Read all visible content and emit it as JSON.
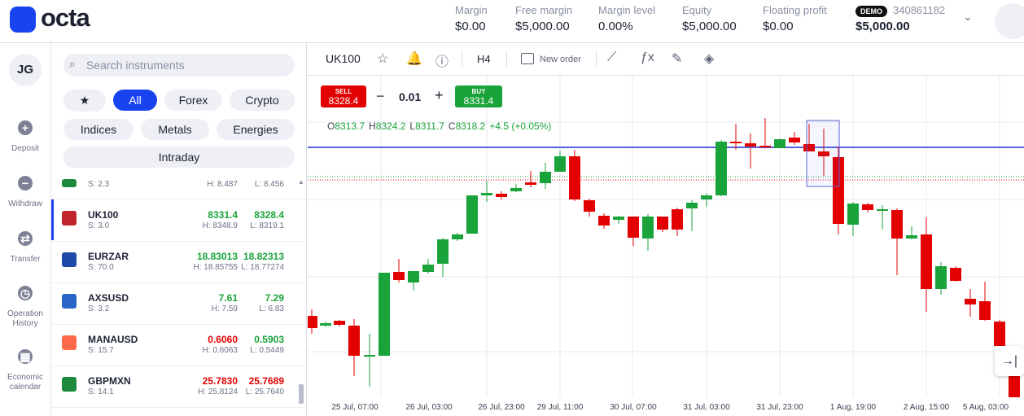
{
  "header": {
    "logo": "octa",
    "stats": [
      {
        "label": "Margin",
        "value": "$0.00"
      },
      {
        "label": "Free margin",
        "value": "$5,000.00"
      },
      {
        "label": "Margin level",
        "value": "0.00%"
      },
      {
        "label": "Equity",
        "value": "$5,000.00"
      },
      {
        "label": "Floating profit",
        "value": "$0.00"
      }
    ],
    "account": {
      "badge": "DEMO",
      "id": "340861182",
      "balance": "$5,000.00"
    }
  },
  "sidebar": {
    "avatar": "JG",
    "items": [
      "Deposit",
      "Withdraw",
      "Transfer",
      "Operation History",
      "Economic calendar"
    ]
  },
  "instruments": {
    "search_placeholder": "Search instruments",
    "filters": [
      "All",
      "Forex",
      "Crypto",
      "Indices",
      "Metals",
      "Energies",
      "Intraday"
    ],
    "rows": [
      {
        "spread": "S: 2.3",
        "high": "H: 8.487",
        "low": "L: 8.456"
      },
      {
        "name": "UK100",
        "ask": "8331.4",
        "bid": "8328.4",
        "spread": "S: 3.0",
        "high": "H: 8348.9",
        "low": "L: 8319.1",
        "ask_color": "#1aa33a",
        "bid_color": "#1aa33a"
      },
      {
        "name": "EURZAR",
        "ask": "18.83013",
        "bid": "18.82313",
        "spread": "S: 70.0",
        "high": "H: 18.85755",
        "low": "L: 18.77274",
        "ask_color": "#1aa33a",
        "bid_color": "#1aa33a"
      },
      {
        "name": "AXSUSD",
        "ask": "7.61",
        "bid": "7.29",
        "spread": "S: 3.2",
        "high": "H: 7.59",
        "low": "L: 6.83",
        "ask_color": "#1aa33a",
        "bid_color": "#1aa33a"
      },
      {
        "name": "MANAUSD",
        "ask": "0.6060",
        "bid": "0.5903",
        "spread": "S: 15.7",
        "high": "H: 0.6063",
        "low": "L: 0.5449",
        "ask_color": "#e30000",
        "bid_color": "#1aa33a"
      },
      {
        "name": "GBPMXN",
        "ask": "25.7830",
        "bid": "25.7689",
        "spread": "S: 14.1",
        "high": "H: 25.8124",
        "low": "L: 25.7640",
        "ask_color": "#e30000",
        "bid_color": "#e30000"
      }
    ]
  },
  "chart": {
    "symbol": "UK100",
    "timeframe": "H4",
    "new_order": "New order",
    "trade": {
      "sell_label": "SELL",
      "sell_price": "8328.4",
      "volume": "0.01",
      "buy_label": "BUY",
      "buy_price": "8331.4"
    },
    "ohlc": [
      {
        "label": "O",
        "value": "8313.7"
      },
      {
        "label": "H",
        "value": "8324.2"
      },
      {
        "label": "L",
        "value": "8311.7"
      },
      {
        "label": "C",
        "value": "8318.2"
      }
    ],
    "change": "+4.5 (+0.05%)",
    "x_labels": [
      "25 Jul, 07:00",
      "26 Jul, 03:00",
      "26 Jul, 23:00",
      "29 Jul, 11:00",
      "30 Jul, 07:00",
      "31 Jul, 03:00",
      "31 Jul, 23:00",
      "1 Aug, 19:00",
      "2 Aug, 15:00",
      "5 Aug, 03:00"
    ]
  }
}
